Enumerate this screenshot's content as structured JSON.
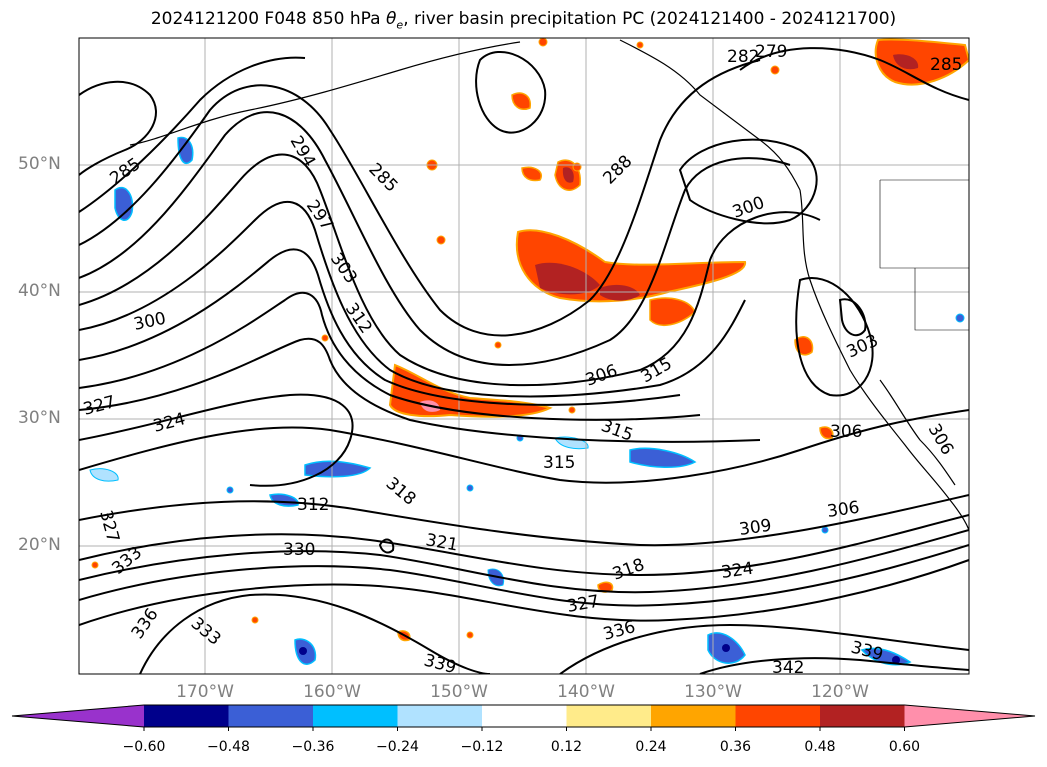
{
  "title": {
    "prefix": "2024121200 F048 850 hPa ",
    "theta": "θ",
    "theta_sub": "e",
    "suffix": ", river basin precipitation PC (2024121400 - 2024121700)"
  },
  "map": {
    "lat_labels": [
      "50°N",
      "40°N",
      "30°N",
      "20°N"
    ],
    "lon_labels": [
      "170°W",
      "160°W",
      "150°W",
      "140°W",
      "130°W",
      "120°W"
    ],
    "contour_labels": [
      "285",
      "294",
      "285",
      "297",
      "303",
      "288",
      "300",
      "312",
      "300",
      "306",
      "315",
      "327",
      "324",
      "315",
      "306",
      "315",
      "312",
      "318",
      "327",
      "330",
      "321",
      "309",
      "306",
      "333",
      "324",
      "318",
      "327",
      "336",
      "333",
      "336",
      "339",
      "342",
      "339",
      "306",
      "303",
      "279",
      "282",
      "285"
    ],
    "colors": {
      "contour": "#000000",
      "coast": "#000000",
      "grid": "#b0b0b0",
      "axis_label": "#808080"
    }
  },
  "colorbar": {
    "ticks": [
      "−0.60",
      "−0.48",
      "−0.36",
      "−0.24",
      "−0.12",
      "0.12",
      "0.24",
      "0.36",
      "0.48",
      "0.60"
    ],
    "colors": [
      "#9932cc",
      "#00008b",
      "#3b5fd6",
      "#00bfff",
      "#b0e2ff",
      "#ffffff",
      "#ffeb8a",
      "#ffa500",
      "#ff4500",
      "#b22222",
      "#ff8fab"
    ]
  }
}
